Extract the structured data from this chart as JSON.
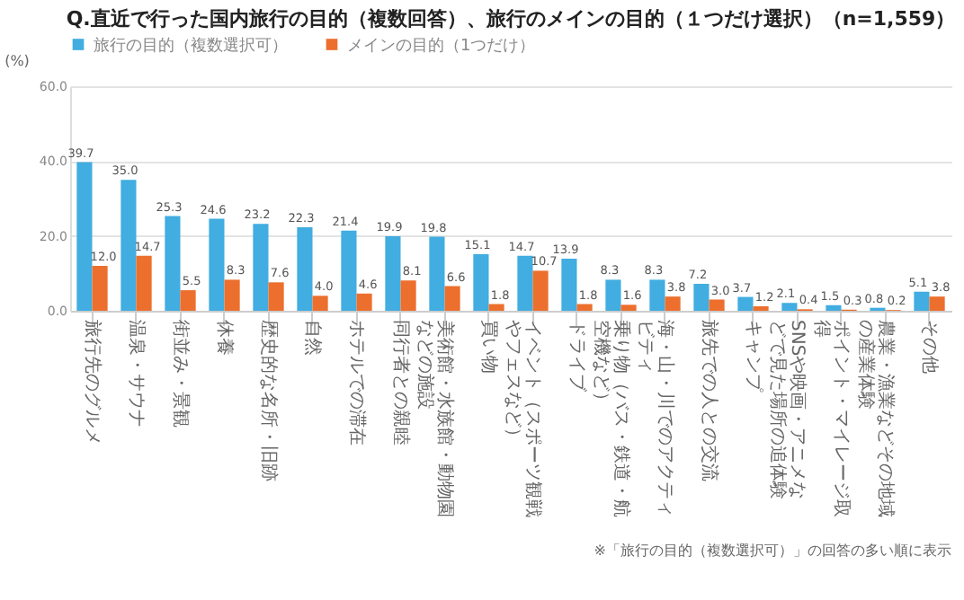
{
  "chart_data": {
    "type": "bar",
    "title": "Q.直近で行った国内旅行の目的（複数回答）、旅行のメインの目的（１つだけ選択）（n=1,559）",
    "ylabel": "(%)",
    "categories": [
      "旅行先のグルメ",
      "温泉・サウナ",
      "街並み・景観",
      "休養",
      "歴史的な名所・旧跡",
      "自然",
      "ホテルでの滞在",
      "同行者との親睦",
      "美術館・水族館・動物園などの施設",
      "買い物",
      "イベント（スポーツ観戦やフェスなど）",
      "ドライブ",
      "乗り物（バス・鉄道・航空機など）",
      "海・山・川でのアクティビティ",
      "旅先での人との交流",
      "キャンプ",
      "SNSや映画・アニメなどで見た場所の追体験",
      "ポイント・マイレージ取得",
      "農業・漁業などその地域の産業体験",
      "その他"
    ],
    "series": [
      {
        "name": "旅行の目的（複数選択可）",
        "color": "#41ade0",
        "values": [
          39.7,
          35.0,
          25.3,
          24.6,
          23.2,
          22.3,
          21.4,
          19.9,
          19.8,
          15.1,
          14.7,
          13.9,
          8.3,
          8.3,
          7.2,
          3.7,
          2.1,
          1.5,
          0.8,
          5.1
        ],
        "value_labels": [
          "39.7",
          "35.0",
          "25.3",
          "24.6",
          "23.2",
          "22.3",
          "21.4",
          "19.9",
          "19.8",
          "15.1",
          "14.7",
          "13.9",
          "8.3",
          "8.3",
          "7.2",
          "3.7",
          "2.1",
          "1.5",
          "0.8",
          "5.1"
        ]
      },
      {
        "name": "メインの目的（1つだけ）",
        "color": "#ec6f2d",
        "values": [
          12.0,
          14.7,
          5.5,
          8.3,
          7.6,
          4.0,
          4.6,
          8.1,
          6.6,
          1.8,
          10.7,
          1.8,
          1.6,
          3.8,
          3.0,
          1.2,
          0.4,
          0.3,
          0.2,
          3.8
        ],
        "value_labels": [
          "12.0",
          "14.7",
          "5.5",
          "8.3",
          "7.6",
          "4.0",
          "4.6",
          "8.1",
          "6.6",
          "1.8",
          "10.7",
          "1.8",
          "1.6",
          "3.8",
          "3.0",
          "1.2",
          "0.4",
          "0.3",
          "0.2",
          "3.8"
        ]
      }
    ],
    "ylim": [
      0,
      60
    ],
    "yticks": [
      {
        "value": 0,
        "label": "0.0"
      },
      {
        "value": 20,
        "label": "20.0"
      },
      {
        "value": 40,
        "label": "40.0"
      },
      {
        "value": 60,
        "label": "60.0"
      }
    ],
    "grid": "y",
    "legend": "top",
    "annotations": [
      "※「旅行の目的（複数選択可）」の回答の多い順に表示"
    ]
  }
}
